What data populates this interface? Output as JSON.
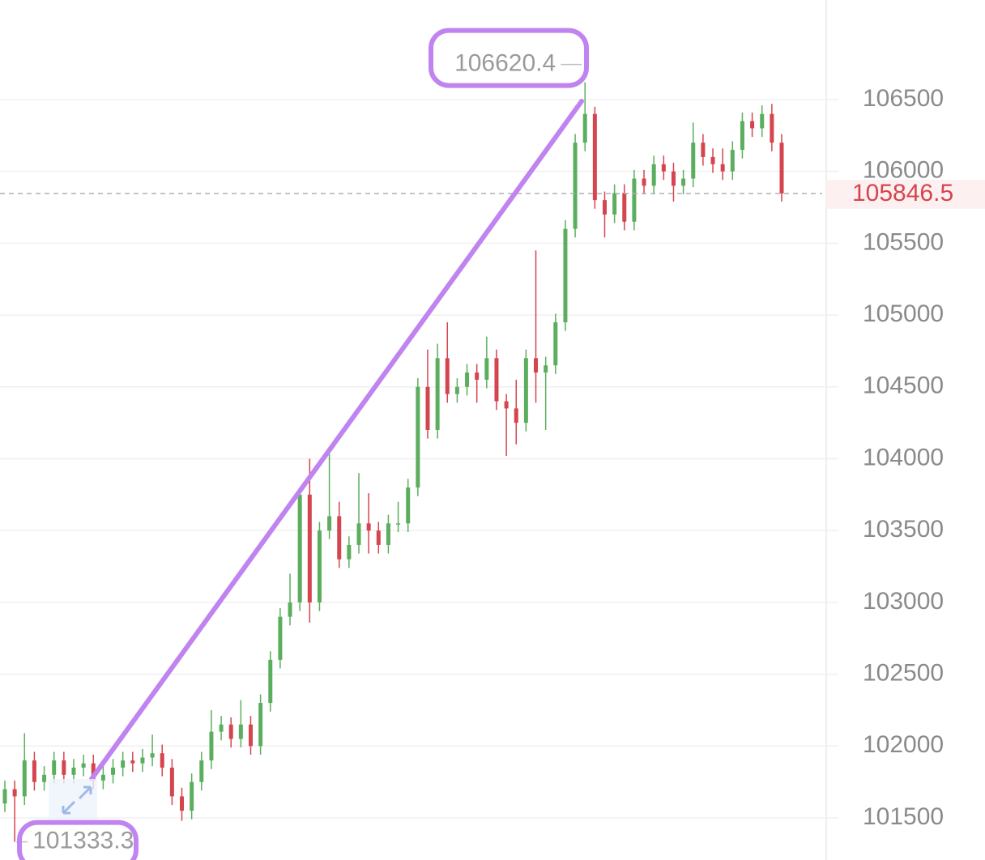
{
  "chart_data": {
    "type": "candlestick",
    "open": [
      101600,
      101700,
      101650,
      101900,
      101750,
      101800,
      101900,
      101800,
      101850,
      101880,
      101760,
      101800,
      101850,
      101900,
      101880,
      101920,
      101950,
      101850,
      101650,
      101550,
      101750,
      101900,
      102100,
      102150,
      102050,
      102150,
      102000,
      102300,
      102600,
      102900,
      103000,
      103750,
      103000,
      103500,
      103600,
      103300,
      103400,
      103550,
      103500,
      103400,
      103550,
      103550,
      103800,
      104500,
      104200,
      104700,
      104450,
      104500,
      104600,
      104550,
      104700,
      104400,
      104350,
      104250,
      104700,
      104600,
      104650,
      104950,
      105600,
      106200,
      106400,
      105800,
      105700,
      105850,
      105650,
      105950,
      105900,
      106050,
      106000,
      105900,
      105950,
      106200,
      106100,
      106050,
      106000,
      106150,
      106350,
      106300,
      106400,
      106200
    ],
    "high": [
      101760,
      101760,
      102090,
      101960,
      101860,
      101960,
      101960,
      101910,
      101940,
      101940,
      101860,
      101910,
      101960,
      101960,
      101980,
      102080,
      102010,
      101910,
      101710,
      101810,
      101960,
      102250,
      102210,
      102200,
      102320,
      102210,
      102360,
      102660,
      102960,
      103200,
      103800,
      104000,
      103560,
      104080,
      103700,
      103460,
      103900,
      103760,
      103560,
      103610,
      103700,
      103860,
      104560,
      104760,
      104800,
      104950,
      104560,
      104660,
      104660,
      104850,
      104760,
      104450,
      104550,
      104760,
      105450,
      104710,
      105010,
      105660,
      106260,
      106620.4,
      106450,
      105860,
      105910,
      105910,
      106010,
      106010,
      106110,
      106110,
      106060,
      106010,
      106340,
      106260,
      106160,
      106160,
      106210,
      106410,
      106410,
      106460,
      106470,
      106260
    ],
    "low": [
      101540,
      101333.3,
      101590,
      101690,
      101690,
      101740,
      101740,
      101740,
      101790,
      101700,
      101700,
      101740,
      101790,
      101820,
      101820,
      101860,
      101790,
      101590,
      101480,
      101490,
      101690,
      101840,
      102040,
      101990,
      101990,
      101940,
      101940,
      102240,
      102540,
      102840,
      102940,
      102860,
      102940,
      103440,
      103240,
      103240,
      103340,
      103340,
      103340,
      103340,
      103490,
      103490,
      103740,
      104140,
      104140,
      104390,
      104390,
      104440,
      104390,
      104490,
      104340,
      104020,
      104100,
      104190,
      104390,
      104200,
      104590,
      104890,
      105540,
      106140,
      105740,
      105540,
      105640,
      105590,
      105590,
      105840,
      105840,
      105940,
      105790,
      105840,
      105890,
      106040,
      105990,
      105940,
      105940,
      106090,
      106240,
      106240,
      106140,
      105790
    ],
    "close": [
      101700,
      101650,
      101900,
      101750,
      101800,
      101900,
      101800,
      101850,
      101880,
      101760,
      101800,
      101850,
      101900,
      101880,
      101920,
      101950,
      101850,
      101650,
      101550,
      101750,
      101900,
      102100,
      102150,
      102050,
      102150,
      102000,
      102300,
      102600,
      102900,
      103000,
      103750,
      103000,
      103500,
      103600,
      103300,
      103400,
      103550,
      103500,
      103400,
      103550,
      103550,
      103800,
      104500,
      104200,
      104700,
      104450,
      104500,
      104600,
      104550,
      104700,
      104400,
      104350,
      104250,
      104700,
      104600,
      104650,
      104950,
      105600,
      106200,
      106400,
      105800,
      105700,
      105850,
      105650,
      105950,
      105900,
      106050,
      106000,
      105900,
      105950,
      106200,
      106100,
      106050,
      106000,
      106150,
      106350,
      106300,
      106400,
      106200,
      105846.5
    ],
    "up_color": "#5cae5f",
    "down_color": "#d5454f",
    "ylim": [
      101207,
      107193
    ],
    "yticks": [
      101500,
      102000,
      102500,
      103000,
      103500,
      104000,
      104500,
      105000,
      105500,
      106000,
      106500
    ],
    "grid": true
  }
}
